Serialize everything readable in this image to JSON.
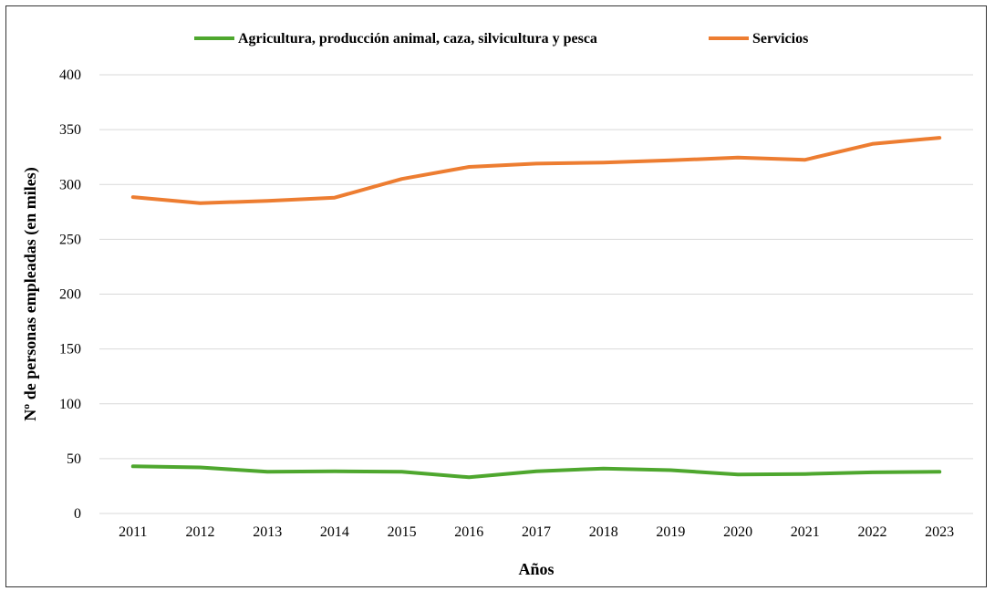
{
  "chart_data": {
    "type": "line",
    "title": "",
    "xlabel": "Años",
    "ylabel": "Nº de personas empleadas (en miles)",
    "x": [
      "2011",
      "2012",
      "2013",
      "2014",
      "2015",
      "2016",
      "2017",
      "2018",
      "2019",
      "2020",
      "2021",
      "2022",
      "2023"
    ],
    "ylim": [
      0,
      400
    ],
    "yticks": [
      0,
      50,
      100,
      150,
      200,
      250,
      300,
      350,
      400
    ],
    "grid": true,
    "legend_position": "top",
    "series": [
      {
        "name": "Agricultura, producción animal, caza, silvicultura y pesca",
        "color": "#4ea72e",
        "values": [
          43,
          42,
          38,
          38.5,
          38,
          33,
          38.5,
          41,
          39.5,
          35.5,
          36,
          37.5,
          38
        ]
      },
      {
        "name": "Servicios",
        "color": "#ed7d31",
        "values": [
          288.5,
          283,
          285,
          288,
          305,
          316,
          319,
          320,
          322,
          324.5,
          322.5,
          337,
          342.5
        ]
      }
    ]
  }
}
